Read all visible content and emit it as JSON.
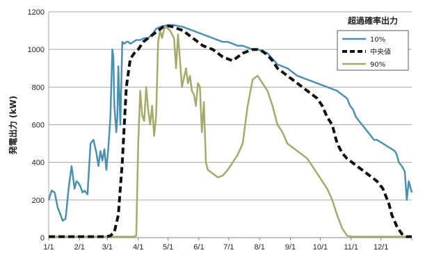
{
  "chart_data": {
    "type": "line",
    "title": "",
    "ylabel": "発電出力 (kW)",
    "xlabel": "",
    "ylim": [
      0,
      1200
    ],
    "yticks": [
      0,
      200,
      400,
      600,
      800,
      1000,
      1200
    ],
    "xlim": [
      0,
      365
    ],
    "xticks": [
      {
        "day": 0,
        "label": "1/1"
      },
      {
        "day": 31,
        "label": "2/1"
      },
      {
        "day": 59,
        "label": "3/1"
      },
      {
        "day": 90,
        "label": "4/1"
      },
      {
        "day": 120,
        "label": "5/1"
      },
      {
        "day": 151,
        "label": "6/1"
      },
      {
        "day": 181,
        "label": "7/1"
      },
      {
        "day": 212,
        "label": "8/1"
      },
      {
        "day": 243,
        "label": "9/1"
      },
      {
        "day": 273,
        "label": "10/1"
      },
      {
        "day": 304,
        "label": "11/1"
      },
      {
        "day": 334,
        "label": "12/1"
      }
    ],
    "grid": "horizontal",
    "legend": {
      "title": "超過確率出力",
      "position": "top-right"
    },
    "series": [
      {
        "name": "10%",
        "color": "#4A90B0",
        "style": "solid",
        "x": [
          0,
          3,
          6,
          9,
          12,
          14,
          17,
          20,
          23,
          26,
          28,
          30,
          32,
          34,
          36,
          39,
          42,
          45,
          48,
          50,
          52,
          54,
          56,
          58,
          60,
          62,
          64,
          65,
          66,
          68,
          69,
          70,
          72,
          74,
          76,
          78,
          80,
          82,
          85,
          88,
          92,
          96,
          100,
          104,
          108,
          112,
          116,
          120,
          125,
          130,
          135,
          140,
          145,
          150,
          155,
          160,
          165,
          170,
          175,
          180,
          185,
          190,
          195,
          200,
          205,
          210,
          215,
          220,
          225,
          230,
          235,
          240,
          245,
          250,
          255,
          260,
          265,
          270,
          275,
          280,
          285,
          290,
          295,
          300,
          303,
          306,
          309,
          312,
          315,
          318,
          321,
          324,
          327,
          330,
          333,
          336,
          339,
          342,
          345,
          348,
          350,
          352,
          355,
          358,
          360,
          362,
          365
        ],
        "y": [
          200,
          250,
          240,
          160,
          120,
          90,
          100,
          260,
          380,
          260,
          300,
          290,
          270,
          240,
          250,
          230,
          500,
          520,
          450,
          380,
          460,
          410,
          470,
          360,
          480,
          640,
          1000,
          960,
          700,
          560,
          640,
          910,
          600,
          1040,
          1030,
          1040,
          1040,
          1030,
          1040,
          1050,
          1050,
          1060,
          1060,
          1080,
          1110,
          1120,
          1125,
          1130,
          1130,
          1125,
          1120,
          1110,
          1100,
          1090,
          1080,
          1070,
          1060,
          1050,
          1040,
          1040,
          1030,
          1020,
          1020,
          1010,
          1000,
          1000,
          990,
          980,
          950,
          920,
          910,
          900,
          880,
          860,
          850,
          840,
          830,
          820,
          810,
          800,
          790,
          780,
          760,
          740,
          700,
          680,
          640,
          620,
          600,
          580,
          560,
          540,
          520,
          520,
          510,
          500,
          490,
          480,
          470,
          460,
          440,
          400,
          380,
          350,
          200,
          300,
          240
        ]
      },
      {
        "name": "中央値",
        "color": "#111111",
        "style": "dashed",
        "x": [
          0,
          10,
          20,
          30,
          40,
          50,
          58,
          62,
          66,
          70,
          74,
          78,
          82,
          86,
          90,
          95,
          100,
          105,
          110,
          115,
          120,
          125,
          130,
          135,
          140,
          145,
          150,
          155,
          160,
          165,
          170,
          175,
          180,
          185,
          190,
          195,
          200,
          205,
          210,
          215,
          220,
          225,
          230,
          235,
          240,
          245,
          250,
          255,
          260,
          265,
          270,
          275,
          280,
          285,
          290,
          295,
          300,
          305,
          310,
          315,
          320,
          325,
          330,
          333,
          336,
          339,
          342,
          345,
          350,
          355,
          360,
          365
        ],
        "y": [
          5,
          5,
          5,
          5,
          5,
          5,
          5,
          10,
          30,
          120,
          400,
          800,
          950,
          980,
          1000,
          1040,
          1060,
          1080,
          1100,
          1120,
          1125,
          1120,
          1110,
          1100,
          1080,
          1060,
          1040,
          1020,
          1010,
          1000,
          980,
          960,
          950,
          940,
          960,
          980,
          990,
          1000,
          1000,
          990,
          970,
          940,
          900,
          880,
          860,
          840,
          820,
          800,
          780,
          760,
          740,
          700,
          640,
          600,
          500,
          450,
          420,
          400,
          380,
          360,
          340,
          320,
          300,
          280,
          260,
          220,
          180,
          120,
          60,
          20,
          5,
          5
        ]
      },
      {
        "name": "90%",
        "color": "#A5A96A",
        "style": "solid",
        "x": [
          0,
          20,
          40,
          60,
          70,
          80,
          85,
          88,
          90,
          92,
          94,
          96,
          98,
          100,
          102,
          104,
          106,
          108,
          110,
          112,
          114,
          116,
          118,
          120,
          122,
          124,
          126,
          128,
          130,
          132,
          134,
          136,
          138,
          140,
          142,
          144,
          146,
          148,
          150,
          152,
          154,
          156,
          158,
          160,
          165,
          170,
          175,
          180,
          185,
          190,
          195,
          200,
          205,
          210,
          215,
          220,
          225,
          230,
          235,
          240,
          245,
          250,
          255,
          260,
          265,
          270,
          275,
          280,
          285,
          290,
          295,
          300,
          305,
          310,
          320,
          330,
          340,
          350,
          360,
          365
        ],
        "y": [
          5,
          5,
          5,
          5,
          5,
          5,
          5,
          10,
          500,
          780,
          650,
          620,
          800,
          680,
          600,
          700,
          540,
          650,
          1040,
          1100,
          1060,
          1110,
          1120,
          1110,
          1100,
          1080,
          1060,
          900,
          1080,
          940,
          800,
          850,
          900,
          820,
          860,
          780,
          760,
          700,
          820,
          800,
          560,
          720,
          400,
          360,
          340,
          320,
          330,
          360,
          400,
          440,
          500,
          700,
          840,
          860,
          820,
          780,
          700,
          600,
          560,
          500,
          480,
          460,
          440,
          420,
          380,
          340,
          300,
          260,
          200,
          120,
          50,
          10,
          5,
          5,
          5,
          5,
          5,
          5,
          5,
          5
        ]
      }
    ]
  }
}
